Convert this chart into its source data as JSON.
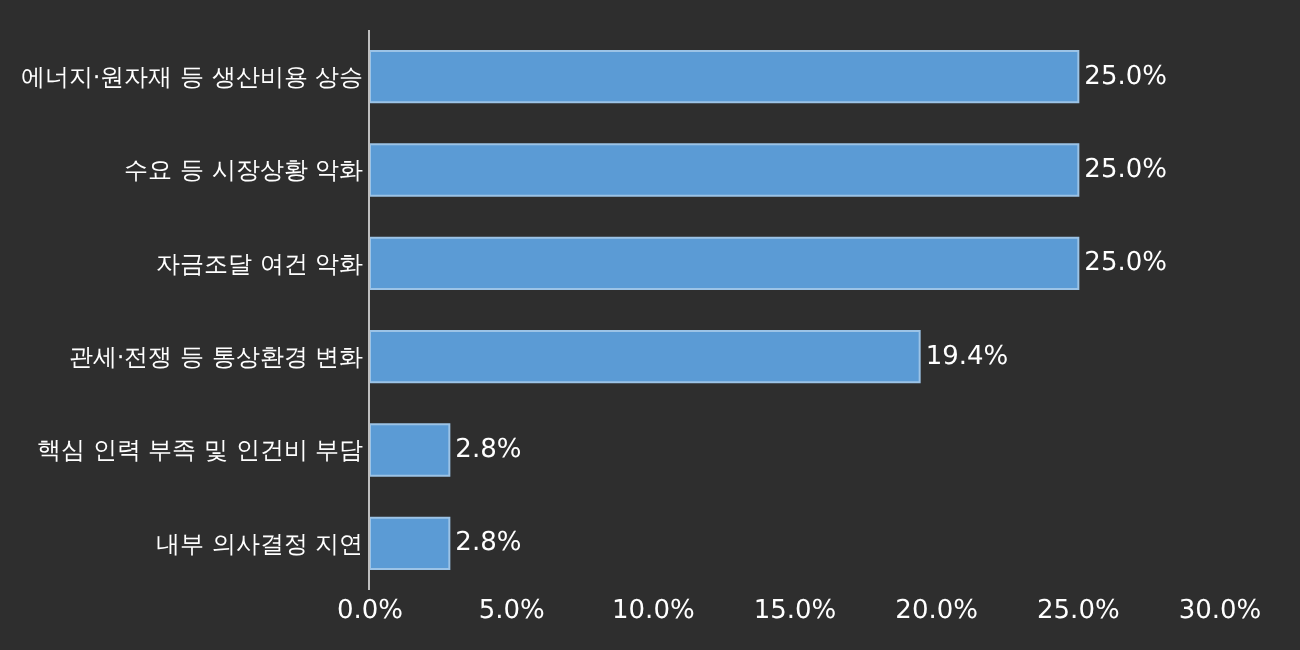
{
  "chart_data": {
    "type": "bar",
    "orientation": "horizontal",
    "categories": [
      "에너지·원자재 등 생산비용 상승",
      "수요 등 시장상황 악화",
      "자금조달 여건 악화",
      "관세·전쟁 등 통상환경 변화",
      "핵심 인력 부족 및 인건비 부담",
      "내부 의사결정 지연"
    ],
    "values": [
      25.0,
      25.0,
      25.0,
      19.4,
      2.8,
      2.8
    ],
    "value_labels": [
      "25.0%",
      "25.0%",
      "25.0%",
      "19.4%",
      "2.8%",
      "2.8%"
    ],
    "color": "#5b9bd5",
    "xlim": [
      0,
      30
    ],
    "xticks": [
      {
        "value": 0,
        "label": "0.0%"
      },
      {
        "value": 5,
        "label": "5.0%"
      },
      {
        "value": 10,
        "label": "10.0%"
      },
      {
        "value": 15,
        "label": "15.0%"
      },
      {
        "value": 20,
        "label": "20.0%"
      },
      {
        "value": 25,
        "label": "25.0%"
      },
      {
        "value": 30,
        "label": "30.0%"
      }
    ],
    "grid": false,
    "legend": false
  }
}
